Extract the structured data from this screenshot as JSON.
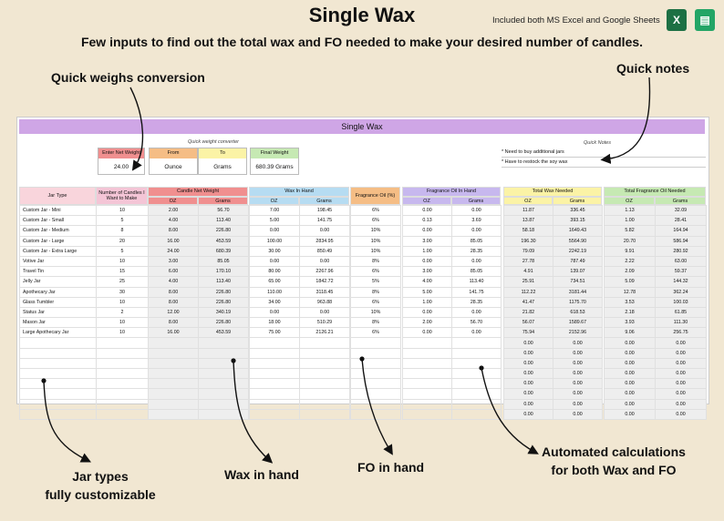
{
  "header": {
    "title": "Single Wax",
    "subtitle": "Few inputs to find out the total wax and FO needed to make your desired number of candles.",
    "included": "Included both MS Excel and Google Sheets",
    "excel_icon": "X",
    "sheets_icon": "▤"
  },
  "annotations": {
    "quick_weighs": "Quick weighs conversion",
    "quick_notes": "Quick notes",
    "jar_types_1": "Jar types",
    "jar_types_2": "fully customizable",
    "wax_in_hand": "Wax in hand",
    "fo_in_hand": "FO in hand",
    "automated_1": "Automated calculations",
    "automated_2": "for both Wax and FO"
  },
  "sheet": {
    "banner": "Single Wax",
    "converter": {
      "title": "Quick weight converter",
      "enter_label": "Enter Net Weight",
      "enter_value": "24.00",
      "from_label": "From",
      "from_value": "Ounce",
      "to_label": "To",
      "to_value": "Grams",
      "final_label": "Final Weight",
      "final_value": "680.39 Grams"
    },
    "notes": {
      "title": "Quick Notes",
      "items": [
        "* Need to buy additional jars",
        "* Have to restock the soy wax"
      ]
    },
    "columns": {
      "jar_type": "Jar Type",
      "num_candles": "Number of Candles I Want to Make",
      "candle_net_weight": "Candle Net Weight",
      "wax_in_hand": "Wax In Hand",
      "fo_pct": "Fragrance Oil (%)",
      "fo_in_hand": "Fragrance Oil In Hand",
      "total_wax": "Total Wax Needed",
      "total_fo": "Total Fragrance Oil Needed",
      "oz": "OZ",
      "grams": "Grams"
    },
    "colors": {
      "banner": "#cfa6e6",
      "jar": "#f9d5dc",
      "candles": "#f4c5d6",
      "net_weight": "#f08f8f",
      "wax": "#b6dcf2",
      "fo_pct": "#f5bd85",
      "fo_hand": "#c7b8ee",
      "total_wax": "#fbf3a6",
      "total_fo": "#c6e9b3"
    },
    "rows": [
      [
        "Custom Jar - Mini",
        "10",
        "2.00",
        "56.70",
        "7.00",
        "198.45",
        "6%",
        "0.00",
        "0.00",
        "11.87",
        "336.45",
        "1.13",
        "32.09"
      ],
      [
        "Custom Jar - Small",
        "5",
        "4.00",
        "113.40",
        "5.00",
        "141.75",
        "6%",
        "0.13",
        "3.69",
        "13.87",
        "393.15",
        "1.00",
        "28.41"
      ],
      [
        "Custom Jar - Medium",
        "8",
        "8.00",
        "226.80",
        "0.00",
        "0.00",
        "10%",
        "0.00",
        "0.00",
        "58.18",
        "1649.43",
        "5.82",
        "164.94"
      ],
      [
        "Custom Jar - Large",
        "20",
        "16.00",
        "453.59",
        "100.00",
        "2834.95",
        "10%",
        "3.00",
        "85.05",
        "196.30",
        "5564.90",
        "20.70",
        "586.94"
      ],
      [
        "Custom Jar - Extra Large",
        "5",
        "24.00",
        "680.39",
        "30.00",
        "850.49",
        "10%",
        "1.00",
        "28.35",
        "79.09",
        "2242.19",
        "9.91",
        "280.92"
      ],
      [
        "Votive Jar",
        "10",
        "3.00",
        "85.05",
        "0.00",
        "0.00",
        "8%",
        "0.00",
        "0.00",
        "27.78",
        "787.49",
        "2.22",
        "63.00"
      ],
      [
        "Travel Tin",
        "15",
        "6.00",
        "170.10",
        "80.00",
        "2267.96",
        "6%",
        "3.00",
        "85.05",
        "4.91",
        "139.07",
        "2.09",
        "59.37"
      ],
      [
        "Jelly Jar",
        "25",
        "4.00",
        "113.40",
        "65.00",
        "1842.72",
        "5%",
        "4.00",
        "113.40",
        "25.91",
        "734.51",
        "5.09",
        "144.32"
      ],
      [
        "Apothecary Jar",
        "30",
        "8.00",
        "226.80",
        "110.00",
        "3118.45",
        "8%",
        "5.00",
        "141.75",
        "112.22",
        "3181.44",
        "12.78",
        "362.24"
      ],
      [
        "Glass Tumbler",
        "10",
        "8.00",
        "226.80",
        "34.00",
        "963.88",
        "6%",
        "1.00",
        "28.35",
        "41.47",
        "1175.70",
        "3.53",
        "100.03"
      ],
      [
        "Status Jar",
        "2",
        "12.00",
        "340.19",
        "0.00",
        "0.00",
        "10%",
        "0.00",
        "0.00",
        "21.82",
        "618.53",
        "2.18",
        "61.85"
      ],
      [
        "Mason Jar",
        "10",
        "8.00",
        "226.80",
        "18.00",
        "510.29",
        "8%",
        "2.00",
        "56.70",
        "56.07",
        "1589.67",
        "3.93",
        "111.30"
      ],
      [
        "Large Apothecary Jar",
        "10",
        "16.00",
        "453.59",
        "75.00",
        "2126.21",
        "6%",
        "0.00",
        "0.00",
        "75.94",
        "2152.96",
        "9.06",
        "256.75"
      ],
      [
        "",
        "",
        "",
        "",
        "",
        "",
        "",
        "",
        "",
        "0.00",
        "0.00",
        "0.00",
        "0.00"
      ],
      [
        "",
        "",
        "",
        "",
        "",
        "",
        "",
        "",
        "",
        "0.00",
        "0.00",
        "0.00",
        "0.00"
      ],
      [
        "",
        "",
        "",
        "",
        "",
        "",
        "",
        "",
        "",
        "0.00",
        "0.00",
        "0.00",
        "0.00"
      ],
      [
        "",
        "",
        "",
        "",
        "",
        "",
        "",
        "",
        "",
        "0.00",
        "0.00",
        "0.00",
        "0.00"
      ],
      [
        "",
        "",
        "",
        "",
        "",
        "",
        "",
        "",
        "",
        "0.00",
        "0.00",
        "0.00",
        "0.00"
      ],
      [
        "",
        "",
        "",
        "",
        "",
        "",
        "",
        "",
        "",
        "0.00",
        "0.00",
        "0.00",
        "0.00"
      ],
      [
        "",
        "",
        "",
        "",
        "",
        "",
        "",
        "",
        "",
        "0.00",
        "0.00",
        "0.00",
        "0.00"
      ],
      [
        "",
        "",
        "",
        "",
        "",
        "",
        "",
        "",
        "",
        "0.00",
        "0.00",
        "0.00",
        "0.00"
      ]
    ]
  }
}
